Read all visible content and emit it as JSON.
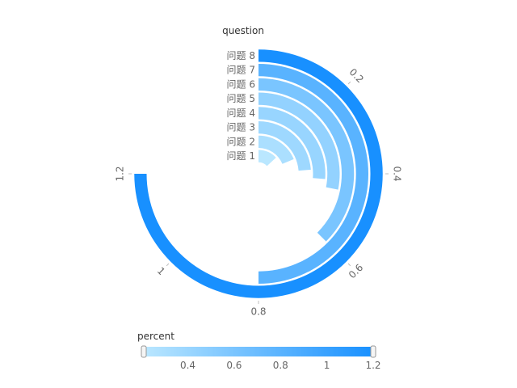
{
  "chart_data": {
    "type": "radial-bar",
    "xlabel": "question",
    "ylabel": "percent",
    "categories": [
      "问题 1",
      "问题 2",
      "问题 3",
      "问题 4",
      "问题 5",
      "问题 6",
      "问题 7",
      "问题 8"
    ],
    "values": [
      0.21,
      0.3,
      0.38,
      0.42,
      0.45,
      0.6,
      0.8,
      1.2
    ],
    "angle_max": 1.2,
    "angle_ticks": [
      "0.2",
      "0.4",
      "0.6",
      "0.8",
      "1",
      "1.2"
    ],
    "color_range": [
      "#bae7ff",
      "#1890ff"
    ],
    "legend": {
      "title": "percent",
      "min": 0.21,
      "max": 1.2,
      "ticks": [
        "0.4",
        "0.6",
        "0.8",
        "1",
        "1.2"
      ],
      "position": "bottom"
    }
  }
}
